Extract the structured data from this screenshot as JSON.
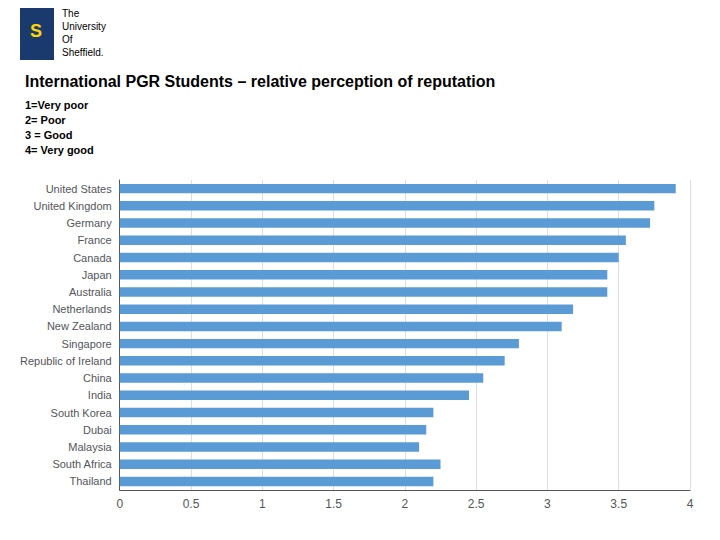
{
  "chart_data": {
    "type": "bar",
    "orientation": "horizontal",
    "title": "International PGR Students – relative perception of reputation",
    "subtitle": [
      "1=Very poor",
      "2= Poor",
      "3 = Good",
      "4= Very good"
    ],
    "annotations": [
      "S",
      "The",
      "University",
      "Of",
      "Sheffield."
    ],
    "categories": [
      "United States",
      "United Kingdom",
      "Germany",
      "France",
      "Canada",
      "Japan",
      "Australia",
      "Netherlands",
      "New Zealand",
      "Singapore",
      "Republic of Ireland",
      "China",
      "India",
      "South Korea",
      "Dubai",
      "Malaysia",
      "South Africa",
      "Thailand"
    ],
    "values": [
      3.9,
      3.75,
      3.72,
      3.55,
      3.5,
      3.42,
      3.42,
      3.18,
      3.1,
      2.8,
      2.7,
      2.55,
      2.45,
      2.2,
      2.15,
      2.1,
      2.25,
      2.2
    ],
    "color": "#5b9bd5",
    "xlim": [
      0,
      4
    ],
    "xticks": [
      0,
      0.5,
      1,
      1.5,
      2,
      2.5,
      3,
      3.5,
      4
    ],
    "grid": true
  }
}
